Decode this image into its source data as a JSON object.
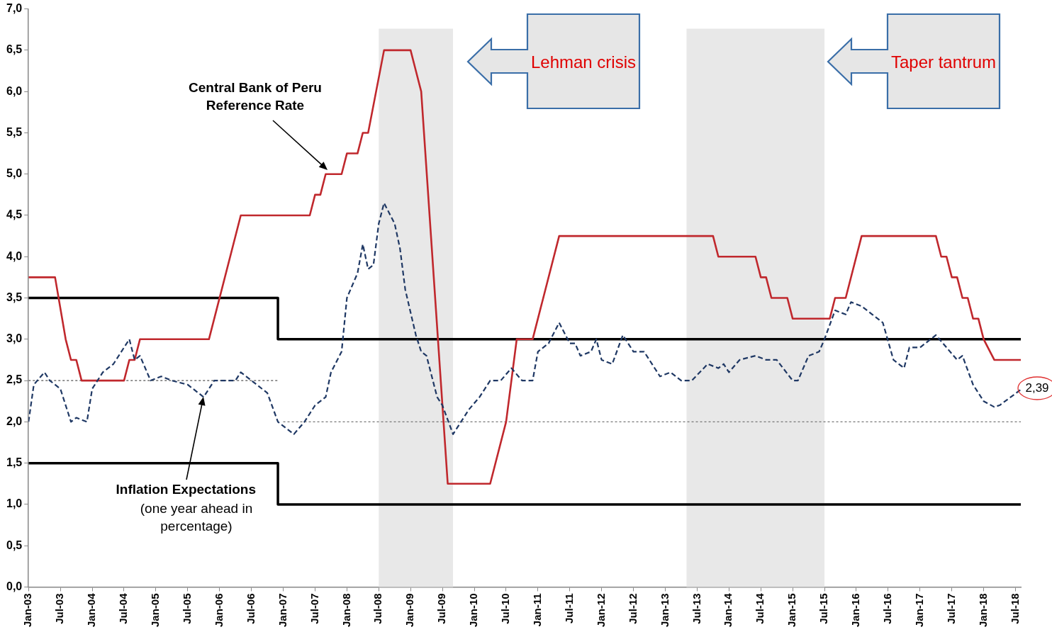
{
  "chart_data": {
    "type": "line",
    "grid": false,
    "marker": "none",
    "xlim": [
      "2003-01",
      "2018-08"
    ],
    "xticks": [
      {
        "value": "2003-01",
        "label": "Jan-03"
      },
      {
        "value": "2003-07",
        "label": "Jul-03"
      },
      {
        "value": "2004-01",
        "label": "Jan-04"
      },
      {
        "value": "2004-07",
        "label": "Jul-04"
      },
      {
        "value": "2005-01",
        "label": "Jan-05"
      },
      {
        "value": "2005-07",
        "label": "Jul-05"
      },
      {
        "value": "2006-01",
        "label": "Jan-06"
      },
      {
        "value": "2006-07",
        "label": "Jul-06"
      },
      {
        "value": "2007-01",
        "label": "Jan-07"
      },
      {
        "value": "2007-07",
        "label": "Jul-07"
      },
      {
        "value": "2008-01",
        "label": "Jan-08"
      },
      {
        "value": "2008-07",
        "label": "Jul-08"
      },
      {
        "value": "2009-01",
        "label": "Jan-09"
      },
      {
        "value": "2009-07",
        "label": "Jul-09"
      },
      {
        "value": "2010-01",
        "label": "Jan-10"
      },
      {
        "value": "2010-07",
        "label": "Jul-10"
      },
      {
        "value": "2011-01",
        "label": "Jan-11"
      },
      {
        "value": "2011-07",
        "label": "Jul-11"
      },
      {
        "value": "2012-01",
        "label": "Jan-12"
      },
      {
        "value": "2012-07",
        "label": "Jul-12"
      },
      {
        "value": "2013-01",
        "label": "Jan-13"
      },
      {
        "value": "2013-07",
        "label": "Jul-13"
      },
      {
        "value": "2014-01",
        "label": "Jan-14"
      },
      {
        "value": "2014-07",
        "label": "Jul-14"
      },
      {
        "value": "2015-01",
        "label": "Jan-15"
      },
      {
        "value": "2015-07",
        "label": "Jul-15"
      },
      {
        "value": "2016-01",
        "label": "Jan-16"
      },
      {
        "value": "2016-07",
        "label": "Jul-16"
      },
      {
        "value": "2017-01",
        "label": "Jan-17"
      },
      {
        "value": "2017-07",
        "label": "Jul-17"
      },
      {
        "value": "2018-01",
        "label": "Jan-18"
      },
      {
        "value": "2018-07",
        "label": "Jul-18"
      }
    ],
    "ylim": [
      0,
      7
    ],
    "yticks": [
      {
        "value": 0,
        "label": "0,0"
      },
      {
        "value": 0.5,
        "label": "0,5"
      },
      {
        "value": 1,
        "label": "1,0"
      },
      {
        "value": 1.5,
        "label": "1,5"
      },
      {
        "value": 2,
        "label": "2,0"
      },
      {
        "value": 2.5,
        "label": "2,5"
      },
      {
        "value": 3,
        "label": "3,0"
      },
      {
        "value": 3.5,
        "label": "3,5"
      },
      {
        "value": 4,
        "label": "4,0"
      },
      {
        "value": 4.5,
        "label": "4,5"
      },
      {
        "value": 5,
        "label": "5,0"
      },
      {
        "value": 5.5,
        "label": "5,5"
      },
      {
        "value": 6,
        "label": "6,0"
      },
      {
        "value": 6.5,
        "label": "6,5"
      },
      {
        "value": 7,
        "label": "7,0"
      }
    ],
    "bands": [
      {
        "axis": "x",
        "from": "2008-07",
        "to": "2009-09",
        "color": "#e8e8e8"
      },
      {
        "axis": "x",
        "from": "2013-05",
        "to": "2015-07",
        "color": "#e8e8e8"
      }
    ],
    "series": [
      {
        "color": "#000000",
        "line_style": "solid",
        "x": [
          "2003-01",
          "2006-12",
          "2006-12",
          "2018-08"
        ],
        "values": [
          3.5,
          3.5,
          3.0,
          3.0
        ]
      },
      {
        "color": "#000000",
        "line_style": "solid",
        "x": [
          "2003-01",
          "2006-12",
          "2006-12",
          "2018-08"
        ],
        "values": [
          1.5,
          1.5,
          1.0,
          1.0
        ]
      },
      {
        "color": "#555555",
        "line_style": "dotted",
        "x": [
          "2003-01",
          "2006-12"
        ],
        "values": [
          2.5,
          2.5
        ]
      },
      {
        "color": "#777777",
        "line_style": "dotted",
        "x": [
          "2007-01",
          "2018-08"
        ],
        "values": [
          2.0,
          2.0
        ]
      },
      {
        "color": "#c0282d",
        "line_style": "solid",
        "x": [
          "2003-01",
          "2003-06",
          "2003-08",
          "2003-09",
          "2003-10",
          "2003-11",
          "2004-07",
          "2004-08",
          "2004-09",
          "2004-10",
          "2005-11",
          "2006-05",
          "2007-06",
          "2007-07",
          "2007-08",
          "2007-09",
          "2007-12",
          "2008-01",
          "2008-03",
          "2008-04",
          "2008-05",
          "2008-08",
          "2009-01",
          "2009-02",
          "2009-03",
          "2009-08",
          "2010-04",
          "2010-07",
          "2010-09",
          "2010-12",
          "2011-05",
          "2013-10",
          "2013-11",
          "2014-06",
          "2014-07",
          "2014-08",
          "2014-09",
          "2014-12",
          "2015-01",
          "2015-08",
          "2015-09",
          "2015-11",
          "2016-02",
          "2017-04",
          "2017-05",
          "2017-06",
          "2017-07",
          "2017-08",
          "2017-09",
          "2017-10",
          "2017-11",
          "2017-12",
          "2018-01",
          "2018-03",
          "2018-08"
        ],
        "values": [
          3.75,
          3.75,
          3.0,
          2.75,
          2.75,
          2.5,
          2.5,
          2.75,
          2.75,
          3.0,
          3.0,
          4.5,
          4.5,
          4.75,
          4.75,
          5.0,
          5.0,
          5.25,
          5.25,
          5.5,
          5.5,
          6.5,
          6.5,
          6.25,
          6.0,
          1.25,
          1.25,
          2.0,
          3.0,
          3.0,
          4.25,
          4.25,
          4.0,
          4.0,
          3.75,
          3.75,
          3.5,
          3.5,
          3.25,
          3.25,
          3.5,
          3.5,
          4.25,
          4.25,
          4.0,
          4.0,
          3.75,
          3.75,
          3.5,
          3.5,
          3.25,
          3.25,
          3.0,
          2.75,
          2.75
        ]
      },
      {
        "color": "#1f3864",
        "line_style": "dashed",
        "x": [
          "2003-01",
          "2003-02",
          "2003-04",
          "2003-05",
          "2003-07",
          "2003-09",
          "2003-10",
          "2003-12",
          "2004-01",
          "2004-03",
          "2004-05",
          "2004-08",
          "2004-09",
          "2004-10",
          "2004-12",
          "2005-02",
          "2005-04",
          "2005-07",
          "2005-09",
          "2005-10",
          "2005-12",
          "2006-04",
          "2006-05",
          "2006-07",
          "2006-09",
          "2006-10",
          "2006-12",
          "2007-03",
          "2007-05",
          "2007-07",
          "2007-09",
          "2007-10",
          "2007-12",
          "2008-01",
          "2008-03",
          "2008-04",
          "2008-05",
          "2008-06",
          "2008-07",
          "2008-08",
          "2008-10",
          "2008-11",
          "2008-12",
          "2009-02",
          "2009-03",
          "2009-04",
          "2009-06",
          "2009-07",
          "2009-09",
          "2009-11",
          "2009-12",
          "2010-02",
          "2010-04",
          "2010-06",
          "2010-08",
          "2010-10",
          "2010-12",
          "2011-01",
          "2011-03",
          "2011-05",
          "2011-07",
          "2011-08",
          "2011-09",
          "2011-11",
          "2011-12",
          "2012-01",
          "2012-03",
          "2012-05",
          "2012-07",
          "2012-09",
          "2012-12",
          "2013-02",
          "2013-04",
          "2013-06",
          "2013-09",
          "2013-11",
          "2013-12",
          "2014-01",
          "2014-03",
          "2014-06",
          "2014-08",
          "2014-10",
          "2015-01",
          "2015-02",
          "2015-04",
          "2015-06",
          "2015-07",
          "2015-09",
          "2015-11",
          "2015-12",
          "2016-02",
          "2016-04",
          "2016-06",
          "2016-08",
          "2016-10",
          "2016-11",
          "2017-01",
          "2017-04",
          "2017-06",
          "2017-08",
          "2017-09",
          "2017-11",
          "2018-01",
          "2018-03",
          "2018-04",
          "2018-08"
        ],
        "values": [
          2.0,
          2.45,
          2.6,
          2.5,
          2.4,
          2.0,
          2.05,
          2.0,
          2.4,
          2.6,
          2.7,
          3.0,
          2.75,
          2.8,
          2.5,
          2.55,
          2.5,
          2.45,
          2.35,
          2.3,
          2.5,
          2.5,
          2.6,
          2.5,
          2.4,
          2.35,
          2.0,
          1.85,
          2.0,
          2.2,
          2.3,
          2.6,
          2.85,
          3.5,
          3.8,
          4.15,
          3.85,
          3.9,
          4.4,
          4.65,
          4.4,
          4.1,
          3.6,
          3.05,
          2.85,
          2.8,
          2.3,
          2.2,
          1.85,
          2.05,
          2.15,
          2.3,
          2.5,
          2.5,
          2.65,
          2.5,
          2.5,
          2.85,
          2.95,
          3.2,
          2.95,
          2.95,
          2.8,
          2.85,
          3.0,
          2.75,
          2.7,
          3.05,
          2.85,
          2.85,
          2.55,
          2.6,
          2.5,
          2.5,
          2.7,
          2.65,
          2.7,
          2.6,
          2.75,
          2.8,
          2.75,
          2.75,
          2.5,
          2.5,
          2.8,
          2.85,
          3.0,
          3.35,
          3.3,
          3.45,
          3.4,
          3.3,
          3.2,
          2.75,
          2.65,
          2.9,
          2.9,
          3.05,
          2.9,
          2.75,
          2.8,
          2.45,
          2.25,
          2.18,
          2.2,
          2.39
        ]
      }
    ],
    "annotations": [
      "Central Bank of Peru Reference Rate",
      {
        "text": "Inflation Expectations",
        "x": "2005-10",
        "y": 2.3
      },
      "(one year ahead in percentage)",
      "Lehman crisis",
      "Taper tantrum",
      {
        "text": "2,39",
        "x": "2018-08",
        "y": 2.39
      }
    ]
  }
}
